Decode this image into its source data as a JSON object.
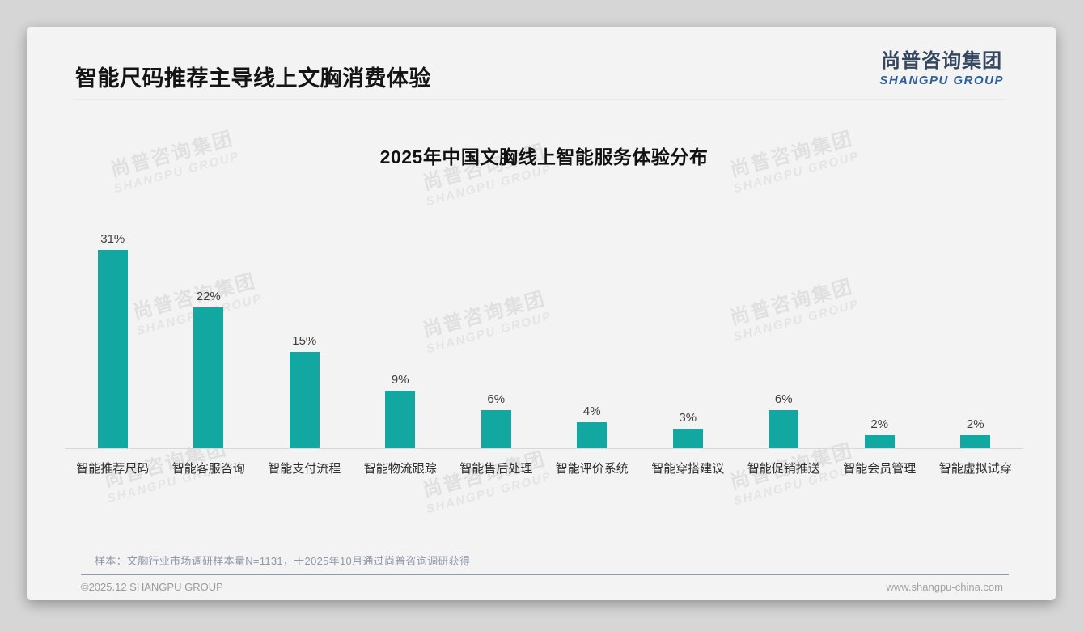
{
  "slide": {
    "title": "智能尺码推荐主导线上文胸消费体验",
    "logo": {
      "cn": "尚普咨询集团",
      "en": "SHANGPU GROUP"
    },
    "watermark": {
      "cn": "尚普咨询集团",
      "en": "SHANGPU GROUP"
    },
    "source_note": "样本：文胸行业市场调研样本量N=1131，于2025年10月通过尚普咨询调研获得",
    "footer": {
      "left": "©2025.12 SHANGPU GROUP",
      "right": "www.shangpu-china.com"
    }
  },
  "colors": {
    "bar": "#12A7A0",
    "title_text": "#141414",
    "logo_cn": "#35475E",
    "logo_en": "#2C5F9B",
    "axis_line": "#D8D8D8",
    "source_text": "#8E99A9",
    "footer_divider": "#8B9CB3",
    "footer_text": "#9B9B9B",
    "card_background": "#F3F3F3",
    "page_background": "#D6D6D6"
  },
  "chart_data": {
    "type": "bar",
    "title": "2025年中国文胸线上智能服务体验分布",
    "categories": [
      "智能推荐尺码",
      "智能客服咨询",
      "智能支付流程",
      "智能物流跟踪",
      "智能售后处理",
      "智能评价系统",
      "智能穿搭建议",
      "智能促销推送",
      "智能会员管理",
      "智能虚拟试穿"
    ],
    "values": [
      31,
      22,
      15,
      9,
      6,
      4,
      3,
      6,
      2,
      2
    ],
    "value_labels": [
      "31%",
      "22%",
      "15%",
      "9%",
      "6%",
      "4%",
      "3%",
      "6%",
      "2%",
      "2%"
    ],
    "unit": "%",
    "bar_color": "#12A7A0",
    "grid": false,
    "legend": false,
    "y_axis_visible": false,
    "value_labels_position": "above"
  }
}
